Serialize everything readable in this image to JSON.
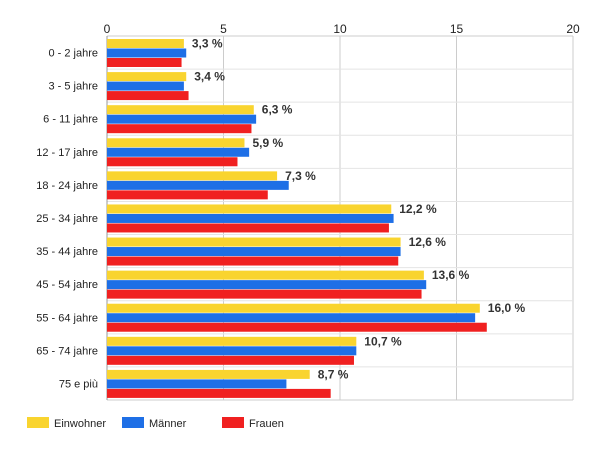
{
  "chart_data": {
    "type": "bar",
    "orientation": "horizontal",
    "categories": [
      "0 - 2 jahre",
      "3 - 5 jahre",
      "6 - 11 jahre",
      "12 - 17 jahre",
      "18 - 24 jahre",
      "25 - 34 jahre",
      "35 - 44 jahre",
      "45 - 54 jahre",
      "55 - 64 jahre",
      "65 - 74 jahre",
      "75 e più"
    ],
    "series": [
      {
        "name": "Einwohner",
        "color": "#f9d42f",
        "values": [
          3.3,
          3.4,
          6.3,
          5.9,
          7.3,
          12.2,
          12.6,
          13.6,
          16.0,
          10.7,
          8.7
        ]
      },
      {
        "name": "Männer",
        "color": "#1e6fe6",
        "values": [
          3.4,
          3.3,
          6.4,
          6.1,
          7.8,
          12.3,
          12.6,
          13.7,
          15.8,
          10.7,
          7.7
        ]
      },
      {
        "name": "Frauen",
        "color": "#f02020",
        "values": [
          3.2,
          3.5,
          6.2,
          5.6,
          6.9,
          12.1,
          12.5,
          13.5,
          16.3,
          10.6,
          9.6
        ]
      }
    ],
    "data_labels": [
      "3,3 %",
      "3,4 %",
      "6,3 %",
      "5,9 %",
      "7,3 %",
      "12,2 %",
      "12,6 %",
      "13,6 %",
      "16,0 %",
      "10,7 %",
      "8,7 %"
    ],
    "x_ticks": [
      "0",
      "5",
      "10",
      "15",
      "20"
    ],
    "xlim": [
      0,
      20
    ],
    "xaxis_position": "top",
    "grid": true,
    "legend_position": "bottom-left",
    "title": "",
    "xlabel": "",
    "ylabel": ""
  }
}
